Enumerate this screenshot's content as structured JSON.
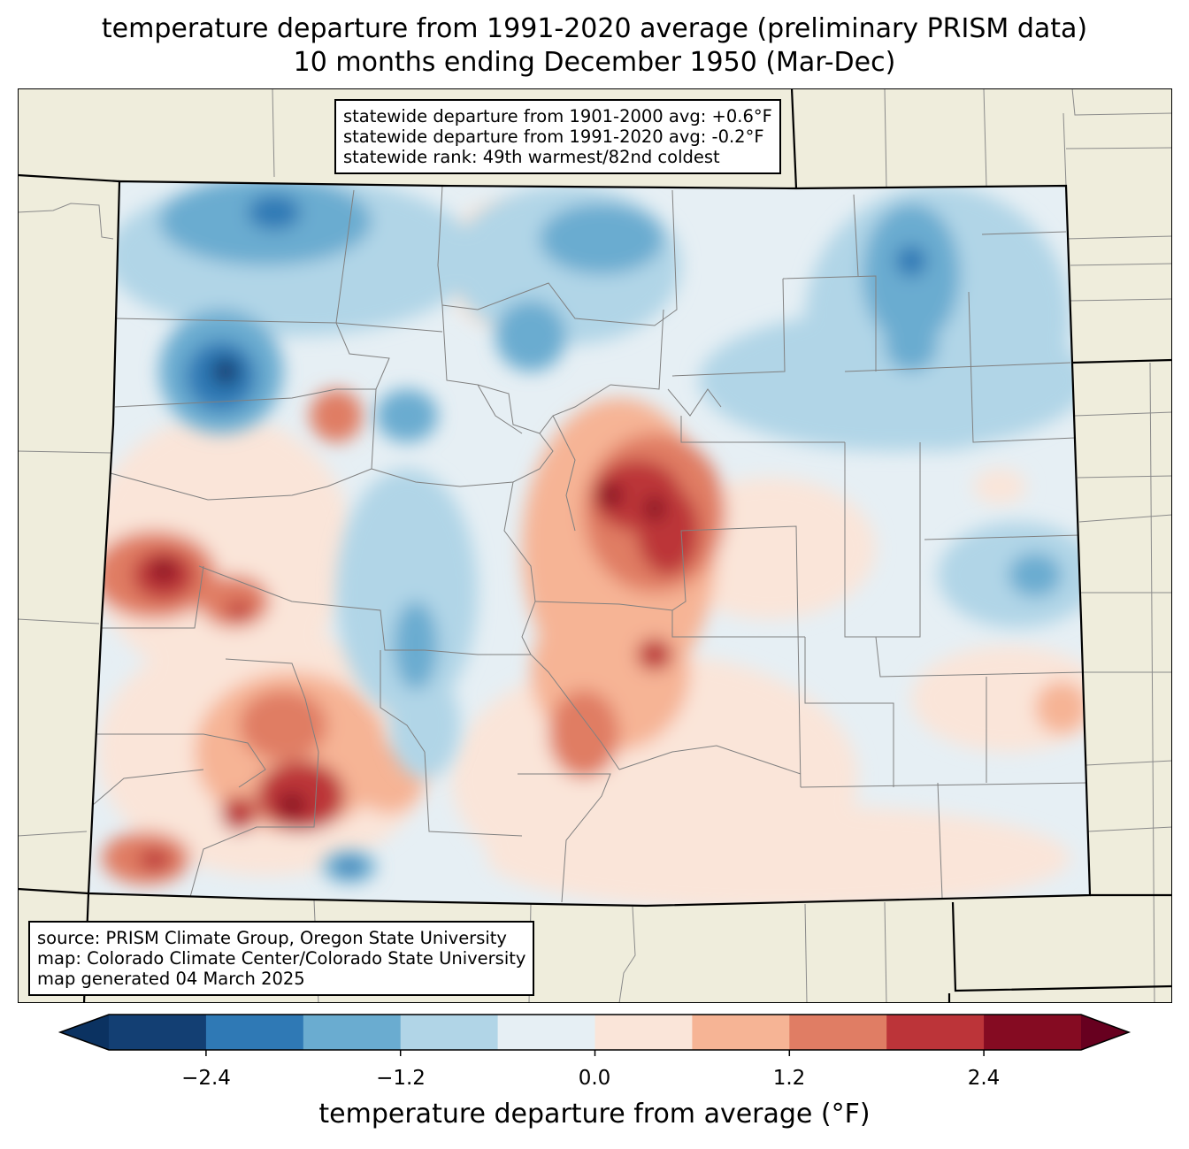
{
  "title": {
    "line1": "temperature departure from 1991-2020 average (preliminary PRISM data)",
    "line2": "10 months ending December 1950 (Mar-Dec)"
  },
  "stats_box": {
    "line1": "statewide departure from 1901-2000 avg: +0.6°F",
    "line2": "statewide departure from 1991-2020 avg: -0.2°F",
    "line3": "statewide rank: 49th warmest/82nd coldest"
  },
  "source_box": {
    "line1": "source: PRISM Climate Group, Oregon State University",
    "line2": "map: Colorado Climate Center/Colorado State University",
    "line3": "map generated 04 March 2025"
  },
  "colorbar": {
    "label": "temperature departure from average (°F)",
    "tick_labels": [
      "−2.4",
      "−1.2",
      "0.0",
      "1.2",
      "2.4"
    ],
    "levels": [
      -3.0,
      -2.4,
      -1.8,
      -1.2,
      -0.6,
      0.0,
      0.6,
      1.2,
      1.8,
      2.4,
      3.0
    ],
    "colors": [
      "#67001f",
      "#133f73",
      "#2f79b5",
      "#6aacd0",
      "#b1d5e7",
      "#e6eff4",
      "#fae5d9",
      "#f6b495",
      "#e07d64",
      "#bc3439",
      "#850b22",
      "#67001f"
    ],
    "under_color": "#0b3261",
    "over_color": "#67001f"
  },
  "map_colors": {
    "land_background": "#efeddc",
    "state_border": "#000000",
    "county_border": "#808080"
  }
}
